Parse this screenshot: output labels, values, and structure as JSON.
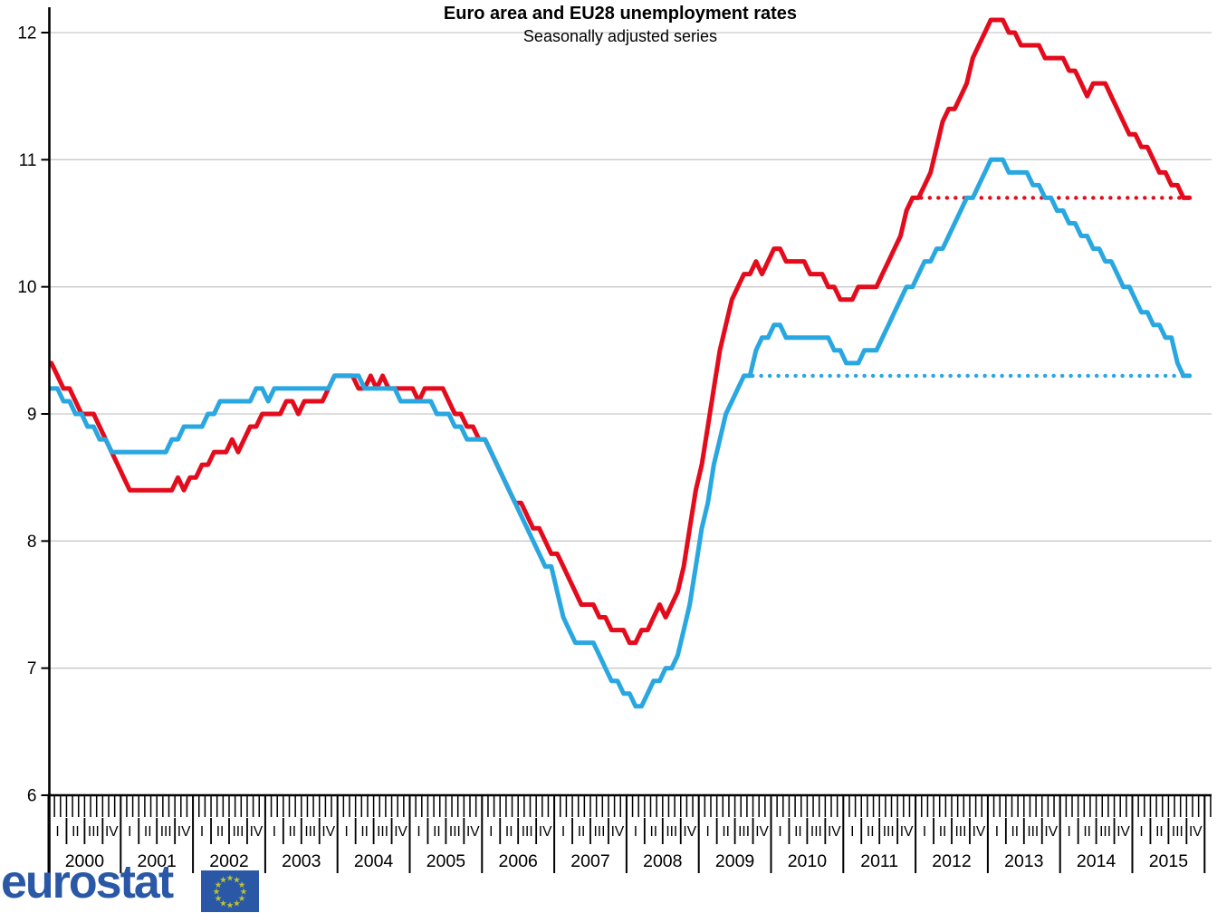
{
  "title": "Euro area and EU28 unemployment rates",
  "subtitle": "Seasonally adjusted series",
  "logo": {
    "text": "eurostat"
  },
  "colors": {
    "euro_area": "#e30b1c",
    "eu28": "#29a7e1",
    "grid": "#c9c9c9",
    "axis": "#000000",
    "logo_blue": "#2b58a6",
    "star_yellow": "#bcc433"
  },
  "chart_data": {
    "type": "line",
    "title": "Euro area and EU28 unemployment rates",
    "subtitle": "Seasonally adjusted series",
    "x_start": "2000-01",
    "x_end": "2015-10",
    "frequency": "monthly",
    "ylim": [
      6,
      12
    ],
    "yticks": [
      6,
      7,
      8,
      9,
      10,
      11,
      12
    ],
    "grid": "horizontal",
    "legend": "none",
    "x_axis": {
      "years": [
        "2000",
        "2001",
        "2002",
        "2003",
        "2004",
        "2005",
        "2006",
        "2007",
        "2008",
        "2009",
        "2010",
        "2011",
        "2012",
        "2013",
        "2014",
        "2015"
      ],
      "quarter_labels": [
        "I",
        "II",
        "III",
        "IV"
      ]
    },
    "series": [
      {
        "name": "Euro area",
        "color": "#e30b1c",
        "values": [
          9.4,
          9.3,
          9.2,
          9.2,
          9.1,
          9.0,
          9.0,
          9.0,
          8.9,
          8.8,
          8.7,
          8.6,
          8.5,
          8.4,
          8.4,
          8.4,
          8.4,
          8.4,
          8.4,
          8.4,
          8.4,
          8.5,
          8.4,
          8.5,
          8.5,
          8.6,
          8.6,
          8.7,
          8.7,
          8.7,
          8.8,
          8.7,
          8.8,
          8.9,
          8.9,
          9.0,
          9.0,
          9.0,
          9.0,
          9.1,
          9.1,
          9.0,
          9.1,
          9.1,
          9.1,
          9.1,
          9.2,
          9.3,
          9.3,
          9.3,
          9.3,
          9.2,
          9.2,
          9.3,
          9.2,
          9.3,
          9.2,
          9.2,
          9.2,
          9.2,
          9.2,
          9.1,
          9.2,
          9.2,
          9.2,
          9.2,
          9.1,
          9.0,
          9.0,
          8.9,
          8.9,
          8.8,
          8.8,
          8.7,
          8.6,
          8.5,
          8.4,
          8.3,
          8.3,
          8.2,
          8.1,
          8.1,
          8.0,
          7.9,
          7.9,
          7.8,
          7.7,
          7.6,
          7.5,
          7.5,
          7.5,
          7.4,
          7.4,
          7.3,
          7.3,
          7.3,
          7.2,
          7.2,
          7.3,
          7.3,
          7.4,
          7.5,
          7.4,
          7.5,
          7.6,
          7.8,
          8.1,
          8.4,
          8.6,
          8.9,
          9.2,
          9.5,
          9.7,
          9.9,
          10.0,
          10.1,
          10.1,
          10.2,
          10.1,
          10.2,
          10.3,
          10.3,
          10.2,
          10.2,
          10.2,
          10.2,
          10.1,
          10.1,
          10.1,
          10.0,
          10.0,
          9.9,
          9.9,
          9.9,
          10.0,
          10.0,
          10.0,
          10.0,
          10.1,
          10.2,
          10.3,
          10.4,
          10.6,
          10.7,
          10.7,
          10.8,
          10.9,
          11.1,
          11.3,
          11.4,
          11.4,
          11.5,
          11.6,
          11.8,
          11.9,
          12.0,
          12.1,
          12.1,
          12.1,
          12.0,
          12.0,
          11.9,
          11.9,
          11.9,
          11.9,
          11.8,
          11.8,
          11.8,
          11.8,
          11.7,
          11.7,
          11.6,
          11.5,
          11.6,
          11.6,
          11.6,
          11.5,
          11.4,
          11.3,
          11.2,
          11.2,
          11.1,
          11.1,
          11.0,
          10.9,
          10.9,
          10.8,
          10.8,
          10.7,
          10.7
        ]
      },
      {
        "name": "EU28",
        "color": "#29a7e1",
        "values": [
          9.2,
          9.2,
          9.1,
          9.1,
          9.0,
          9.0,
          8.9,
          8.9,
          8.8,
          8.8,
          8.7,
          8.7,
          8.7,
          8.7,
          8.7,
          8.7,
          8.7,
          8.7,
          8.7,
          8.7,
          8.8,
          8.8,
          8.9,
          8.9,
          8.9,
          8.9,
          9.0,
          9.0,
          9.1,
          9.1,
          9.1,
          9.1,
          9.1,
          9.1,
          9.2,
          9.2,
          9.1,
          9.2,
          9.2,
          9.2,
          9.2,
          9.2,
          9.2,
          9.2,
          9.2,
          9.2,
          9.2,
          9.3,
          9.3,
          9.3,
          9.3,
          9.3,
          9.2,
          9.2,
          9.2,
          9.2,
          9.2,
          9.2,
          9.1,
          9.1,
          9.1,
          9.1,
          9.1,
          9.1,
          9.0,
          9.0,
          9.0,
          8.9,
          8.9,
          8.8,
          8.8,
          8.8,
          8.8,
          8.7,
          8.6,
          8.5,
          8.4,
          8.3,
          8.2,
          8.1,
          8.0,
          7.9,
          7.8,
          7.8,
          7.6,
          7.4,
          7.3,
          7.2,
          7.2,
          7.2,
          7.2,
          7.1,
          7.0,
          6.9,
          6.9,
          6.8,
          6.8,
          6.7,
          6.7,
          6.8,
          6.9,
          6.9,
          7.0,
          7.0,
          7.1,
          7.3,
          7.5,
          7.8,
          8.1,
          8.3,
          8.6,
          8.8,
          9.0,
          9.1,
          9.2,
          9.3,
          9.3,
          9.5,
          9.6,
          9.6,
          9.7,
          9.7,
          9.6,
          9.6,
          9.6,
          9.6,
          9.6,
          9.6,
          9.6,
          9.6,
          9.5,
          9.5,
          9.4,
          9.4,
          9.4,
          9.5,
          9.5,
          9.5,
          9.6,
          9.7,
          9.8,
          9.9,
          10.0,
          10.0,
          10.1,
          10.2,
          10.2,
          10.3,
          10.3,
          10.4,
          10.5,
          10.6,
          10.7,
          10.7,
          10.8,
          10.9,
          11.0,
          11.0,
          11.0,
          10.9,
          10.9,
          10.9,
          10.9,
          10.8,
          10.8,
          10.7,
          10.7,
          10.6,
          10.6,
          10.5,
          10.5,
          10.4,
          10.4,
          10.3,
          10.3,
          10.2,
          10.2,
          10.1,
          10.0,
          10.0,
          9.9,
          9.8,
          9.8,
          9.7,
          9.7,
          9.6,
          9.6,
          9.4,
          9.3,
          9.3
        ]
      }
    ],
    "reference_lines": [
      {
        "series": "Euro area",
        "value": 10.7,
        "start_index": 143,
        "style": "dotted",
        "color": "#e30b1c"
      },
      {
        "series": "EU28",
        "value": 9.3,
        "start_index": 115,
        "style": "dotted",
        "color": "#29a7e1"
      }
    ]
  }
}
